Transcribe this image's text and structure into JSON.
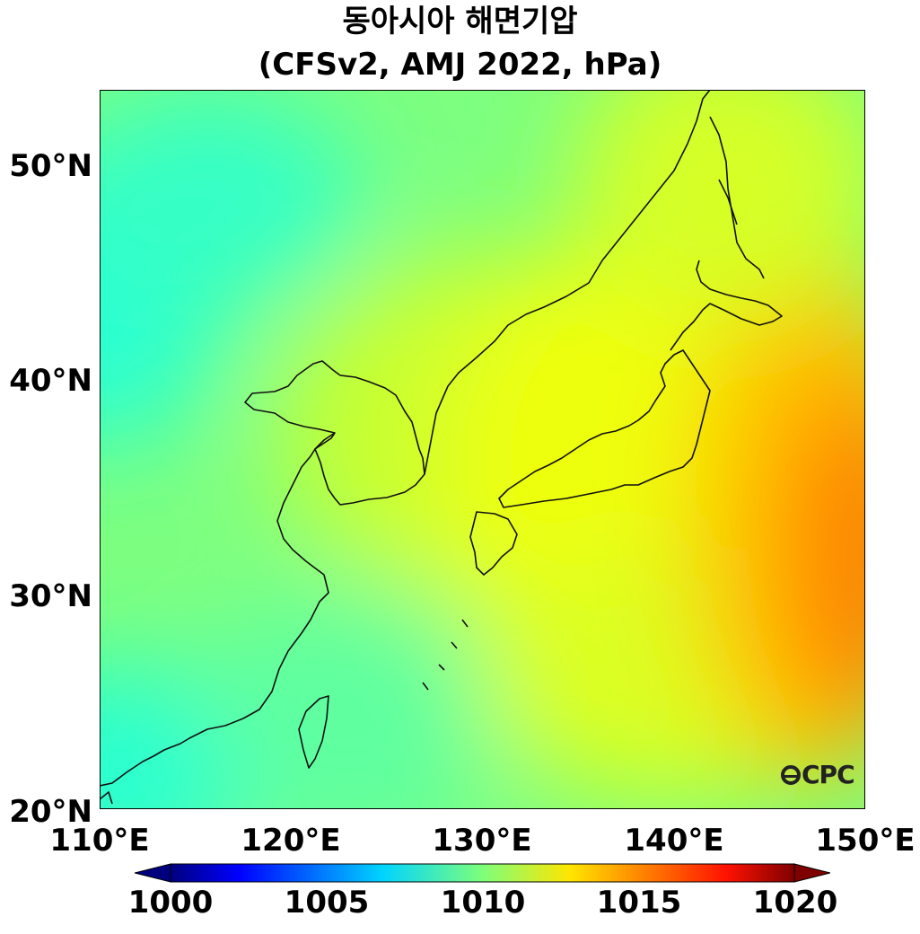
{
  "title": {
    "line1": "동아시아 해면기압",
    "line2": "(CFSv2, AMJ 2022, hPa)"
  },
  "axes": {
    "x_ticks": [
      "110°E",
      "120°E",
      "130°E",
      "140°E",
      "150°E"
    ],
    "y_ticks": [
      "50°N",
      "40°N",
      "30°N",
      "20°N"
    ]
  },
  "colorbar": {
    "ticks": [
      "1000",
      "1005",
      "1010",
      "1015",
      "1020"
    ],
    "colormap": "jet",
    "extend": "both"
  },
  "watermark": "CPC",
  "colors": {
    "low": "#00008b",
    "mid": "#7dff80",
    "high": "#800000",
    "coastline": "#111111"
  },
  "chart_data": {
    "type": "heatmap",
    "projection": "PlateCarree",
    "lon_range": [
      110,
      150
    ],
    "lat_range": [
      20,
      53.5
    ],
    "value_range": [
      1000,
      1020
    ],
    "units": "hPa",
    "field_summary": [
      {
        "lon": 110.5,
        "lat": 44,
        "value": 1007.5
      },
      {
        "lon": 115,
        "lat": 48,
        "value": 1008
      },
      {
        "lon": 120,
        "lat": 37,
        "value": 1010
      },
      {
        "lon": 112,
        "lat": 22,
        "value": 1008.5
      },
      {
        "lon": 131,
        "lat": 40,
        "value": 1012
      },
      {
        "lon": 138,
        "lat": 36,
        "value": 1013.5
      },
      {
        "lon": 149,
        "lat": 32,
        "value": 1016
      },
      {
        "lon": 146,
        "lat": 42,
        "value": 1014.5
      },
      {
        "lon": 140,
        "lat": 25,
        "value": 1012
      },
      {
        "lon": 125,
        "lat": 25,
        "value": 1010
      }
    ]
  }
}
